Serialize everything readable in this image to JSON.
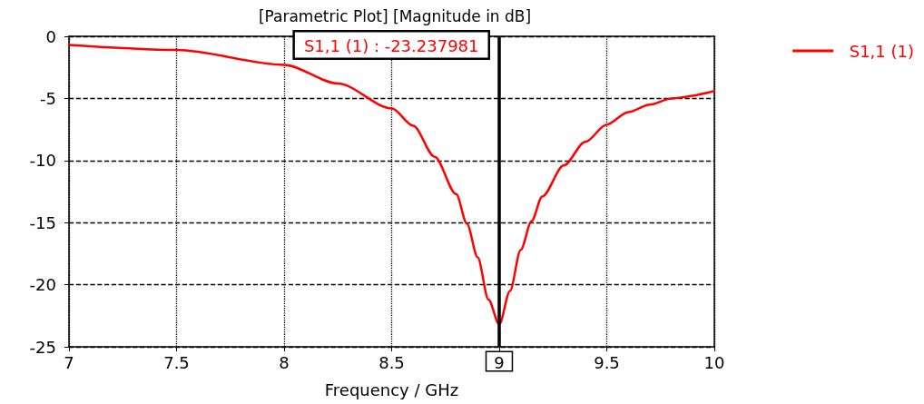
{
  "chart_data": {
    "type": "line",
    "title": "[Parametric Plot] [Magnitude in dB]",
    "xlabel": "Frequency / GHz",
    "x": [
      7,
      7.5,
      8,
      8.25,
      8.5,
      8.6,
      8.7,
      8.8,
      8.85,
      8.9,
      8.95,
      9,
      9.05,
      9.1,
      9.15,
      9.2,
      9.3,
      9.4,
      9.5,
      9.6,
      9.7,
      9.8,
      10
    ],
    "series": [
      {
        "name": "S1,1 (1)",
        "color": "#ff0000",
        "values": [
          -0.7,
          -1.1,
          -2.3,
          -3.8,
          -5.8,
          -7.2,
          -9.7,
          -12.7,
          -15.1,
          -17.8,
          -21.2,
          -23.2,
          -20.5,
          -17.2,
          -14.9,
          -12.9,
          -10.4,
          -8.5,
          -7.1,
          -6.1,
          -5.5,
          -5.0,
          -4.4
        ]
      }
    ],
    "xlim": [
      7,
      10
    ],
    "xticks": [
      7,
      7.5,
      8,
      8.5,
      {
        "value": 9,
        "label": null
      },
      9.5,
      10
    ],
    "ylim": [
      -25,
      0
    ],
    "yticks": [
      -25,
      -20,
      -15,
      -10,
      -5,
      0
    ],
    "ref_lines": [
      {
        "axis": "x",
        "value": 9,
        "label": "9",
        "color": "#000000"
      }
    ],
    "annotations": [
      "S1,1 (1) : -23.237981"
    ],
    "grid": true,
    "legend": "top right",
    "marker": "none",
    "line_style": "solid"
  }
}
